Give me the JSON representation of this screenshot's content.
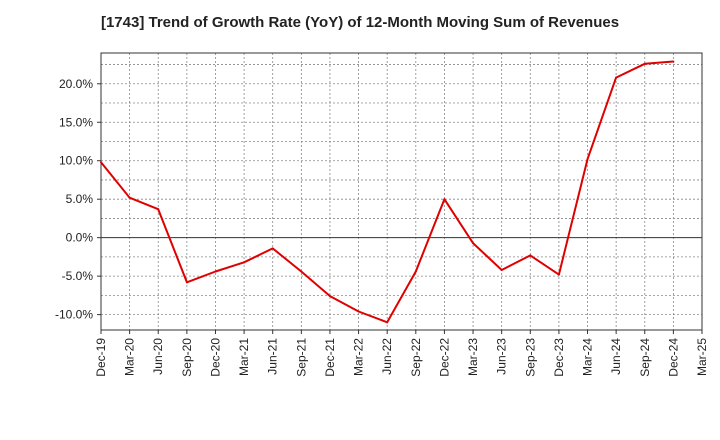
{
  "chart_data": {
    "type": "line",
    "title": "[1743]  Trend of Growth Rate (YoY) of 12-Month Moving Sum of Revenues",
    "xlabel": "",
    "ylabel": "",
    "x_ticks": [
      "Dec-19",
      "Mar-20",
      "Jun-20",
      "Sep-20",
      "Dec-20",
      "Mar-21",
      "Jun-21",
      "Sep-21",
      "Dec-21",
      "Mar-22",
      "Jun-22",
      "Sep-22",
      "Dec-22",
      "Mar-23",
      "Jun-23",
      "Sep-23",
      "Dec-23",
      "Mar-24",
      "Jun-24",
      "Sep-24",
      "Dec-24",
      "Mar-25"
    ],
    "y_ticks": [
      "20.0%",
      "15.0%",
      "10.0%",
      "5.0%",
      "0.0%",
      "-5.0%",
      "-10.0%"
    ],
    "y_tick_values": [
      20,
      15,
      10,
      5,
      0,
      -5,
      -10
    ],
    "ylim": [
      -12,
      24
    ],
    "grid": true,
    "series": [
      {
        "color": "#e00000",
        "x": [
          "Dec-19",
          "Mar-20",
          "Jun-20",
          "Sep-20",
          "Dec-20",
          "Mar-21",
          "Jun-21",
          "Sep-21",
          "Dec-21",
          "Mar-22",
          "Jun-22",
          "Sep-22",
          "Dec-22",
          "Mar-23",
          "Jun-23",
          "Sep-23",
          "Dec-23",
          "Mar-24",
          "Jun-24",
          "Sep-24",
          "Dec-24"
        ],
        "values": [
          9.8,
          5.2,
          3.7,
          -5.8,
          -4.4,
          -3.2,
          -1.4,
          -4.4,
          -7.6,
          -9.6,
          -11.0,
          -4.4,
          5.0,
          -0.7,
          -4.2,
          -2.3,
          -4.8,
          10.2,
          20.8,
          22.6,
          22.9
        ]
      }
    ]
  }
}
